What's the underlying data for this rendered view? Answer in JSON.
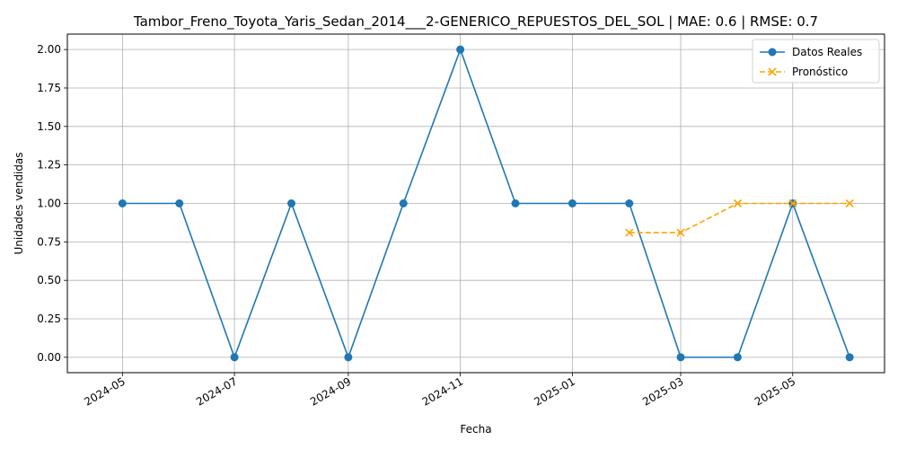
{
  "chart_data": {
    "type": "line",
    "title": "Tambor_Freno_Toyota_Yaris_Sedan_2014___2-GENERICO_REPUESTOS_DEL_SOL | MAE: 0.6 | RMSE: 0.7",
    "xlabel": "Fecha",
    "ylabel": "Unidades vendidas",
    "ylim": [
      -0.1,
      2.1
    ],
    "xlim": [
      "2024-04-01",
      "2025-06-20"
    ],
    "grid": true,
    "legend_position": "top-right",
    "x_ticks": [
      "2024-05",
      "2024-07",
      "2024-09",
      "2024-11",
      "2025-01",
      "2025-03",
      "2025-05"
    ],
    "y_ticks": [
      "0.00",
      "0.25",
      "0.50",
      "0.75",
      "1.00",
      "1.25",
      "1.50",
      "1.75",
      "2.00"
    ],
    "series": [
      {
        "name": "Datos Reales",
        "color": "#1f77b4",
        "marker": "circle",
        "linestyle": "solid",
        "x": [
          "2024-05-01",
          "2024-06-01",
          "2024-07-01",
          "2024-08-01",
          "2024-09-01",
          "2024-10-01",
          "2024-11-01",
          "2024-12-01",
          "2025-01-01",
          "2025-02-01",
          "2025-03-01",
          "2025-04-01",
          "2025-05-01",
          "2025-06-01"
        ],
        "y": [
          1,
          1,
          0,
          1,
          0,
          1,
          2,
          1,
          1,
          1,
          0,
          0,
          1,
          0
        ]
      },
      {
        "name": "Pronóstico",
        "color": "#ffa500",
        "marker": "x",
        "linestyle": "dashed",
        "x": [
          "2025-02-01",
          "2025-03-01",
          "2025-04-01",
          "2025-05-01",
          "2025-06-01"
        ],
        "y": [
          0.81,
          0.81,
          1.0,
          1.0,
          1.0
        ]
      }
    ]
  }
}
